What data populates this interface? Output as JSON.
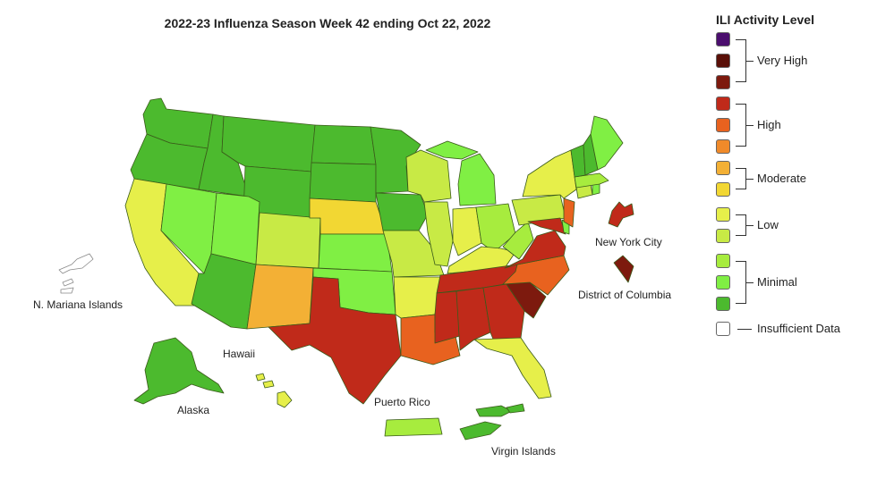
{
  "title": "2022-23 Influenza Season Week 42 ending Oct 22, 2022",
  "legend": {
    "title": "ILI Activity Level",
    "levels": [
      {
        "level": 13,
        "color": "#4b0e6e"
      },
      {
        "level": 12,
        "color": "#5a1008"
      },
      {
        "level": 11,
        "color": "#7d1a0e"
      },
      {
        "level": 10,
        "color": "#c02a1a"
      },
      {
        "level": 9,
        "color": "#e8621f"
      },
      {
        "level": 8,
        "color": "#f08a2a"
      },
      {
        "level": 7,
        "color": "#f3b035"
      },
      {
        "level": 6,
        "color": "#f2d733"
      },
      {
        "level": 5,
        "color": "#e6ef4a"
      },
      {
        "level": 4,
        "color": "#c8ea45"
      },
      {
        "level": 3,
        "color": "#a7ec3e"
      },
      {
        "level": 2,
        "color": "#80ef44"
      },
      {
        "level": 1,
        "color": "#4cba2e"
      },
      {
        "level": 0,
        "color": "#ffffff"
      }
    ],
    "groups": [
      {
        "label": "Very High"
      },
      {
        "label": "High"
      },
      {
        "label": "Moderate"
      },
      {
        "label": "Low"
      },
      {
        "label": "Minimal"
      },
      {
        "label": "Insufficient Data"
      }
    ]
  },
  "territory_labels": {
    "nyc": "New York City",
    "dc": "District of Columbia",
    "mariana": "N. Mariana Islands",
    "hawaii": "Hawaii",
    "alaska": "Alaska",
    "puerto_rico": "Puerto Rico",
    "virgin_islands": "Virgin Islands"
  },
  "activity_levels": {
    "WA": 1,
    "OR": 1,
    "CA": 5,
    "NV": 2,
    "ID": 1,
    "MT": 1,
    "WY": 1,
    "UT": 2,
    "AZ": 1,
    "NM": 7,
    "CO": 4,
    "ND": 1,
    "SD": 1,
    "NE": 6,
    "KS": 2,
    "OK": 2,
    "TX": 10,
    "MN": 1,
    "IA": 1,
    "MO": 4,
    "AR": 5,
    "LA": 9,
    "WI": 4,
    "IL": 4,
    "MI": 2,
    "IN": 5,
    "OH": 3,
    "KY": 5,
    "TN": 10,
    "MS": 10,
    "AL": 10,
    "GA": 10,
    "FL": 5,
    "SC": 11,
    "NC": 9,
    "VA": 10,
    "WV": 3,
    "MD": 10,
    "DE": 2,
    "PA": 4,
    "NJ": 9,
    "NY": 5,
    "CT": 4,
    "RI": 2,
    "MA": 3,
    "VT": 1,
    "NH": 1,
    "ME": 2,
    "NYC": 10,
    "DC": 11,
    "AK": 1,
    "HI": 5,
    "PR": 3,
    "VI": 1,
    "MP": 0
  }
}
